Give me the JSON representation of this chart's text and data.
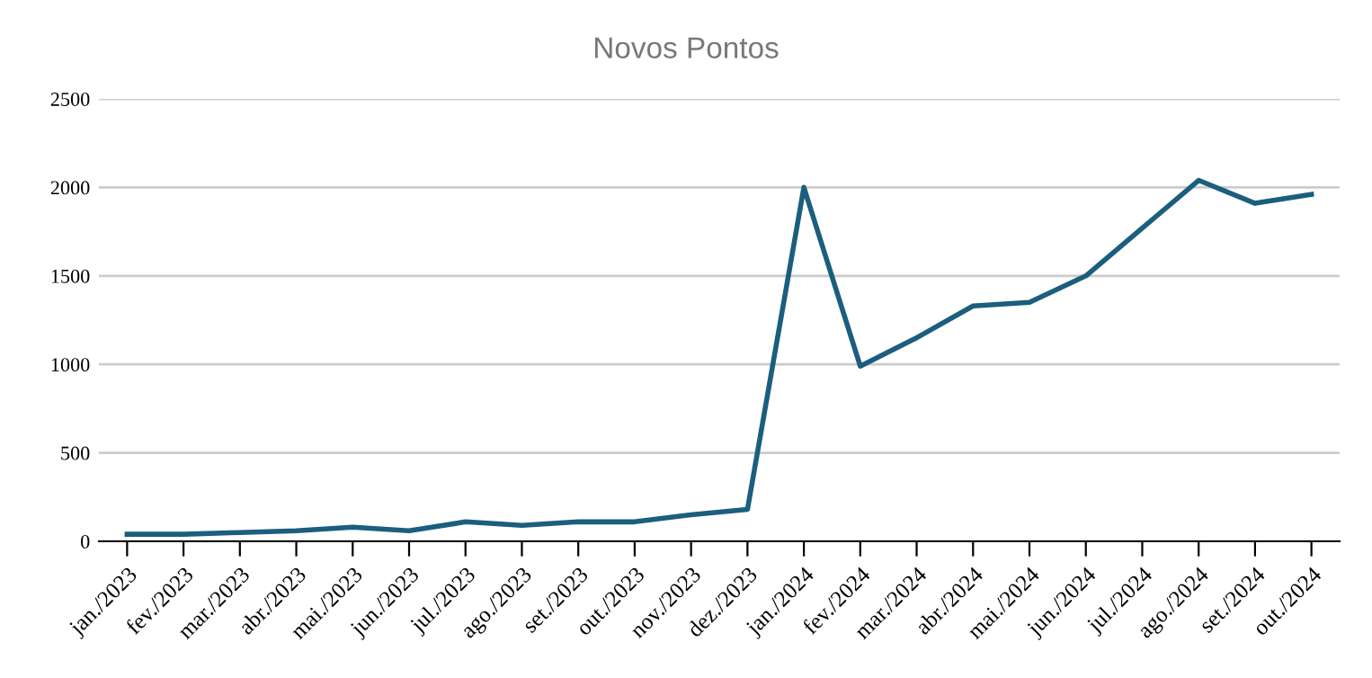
{
  "chart_data": {
    "type": "line",
    "title": "Novos Pontos",
    "categories": [
      "jan./2023",
      "fev./2023",
      "mar./2023",
      "abr./2023",
      "mai./2023",
      "jun./2023",
      "jul./2023",
      "ago./2023",
      "set./2023",
      "out./2023",
      "nov./2023",
      "dez./2023",
      "jan./2024",
      "fev./2024",
      "mar./2024",
      "abr./2024",
      "mai./2024",
      "jun./2024",
      "jul./2024",
      "ago./2024",
      "set./2024",
      "out./2024"
    ],
    "series": [
      {
        "color": "#1b5e7e",
        "values": [
          40,
          40,
          50,
          60,
          80,
          60,
          110,
          90,
          110,
          110,
          150,
          180,
          2000,
          990,
          1150,
          1330,
          1350,
          1500,
          1770,
          2040,
          1910,
          1960
        ]
      }
    ],
    "ylim": [
      0,
      2500
    ],
    "yticks": [
      0,
      500,
      1000,
      1500,
      2000,
      2500
    ],
    "grid": "y",
    "marker": "none",
    "line_style": "solid"
  }
}
